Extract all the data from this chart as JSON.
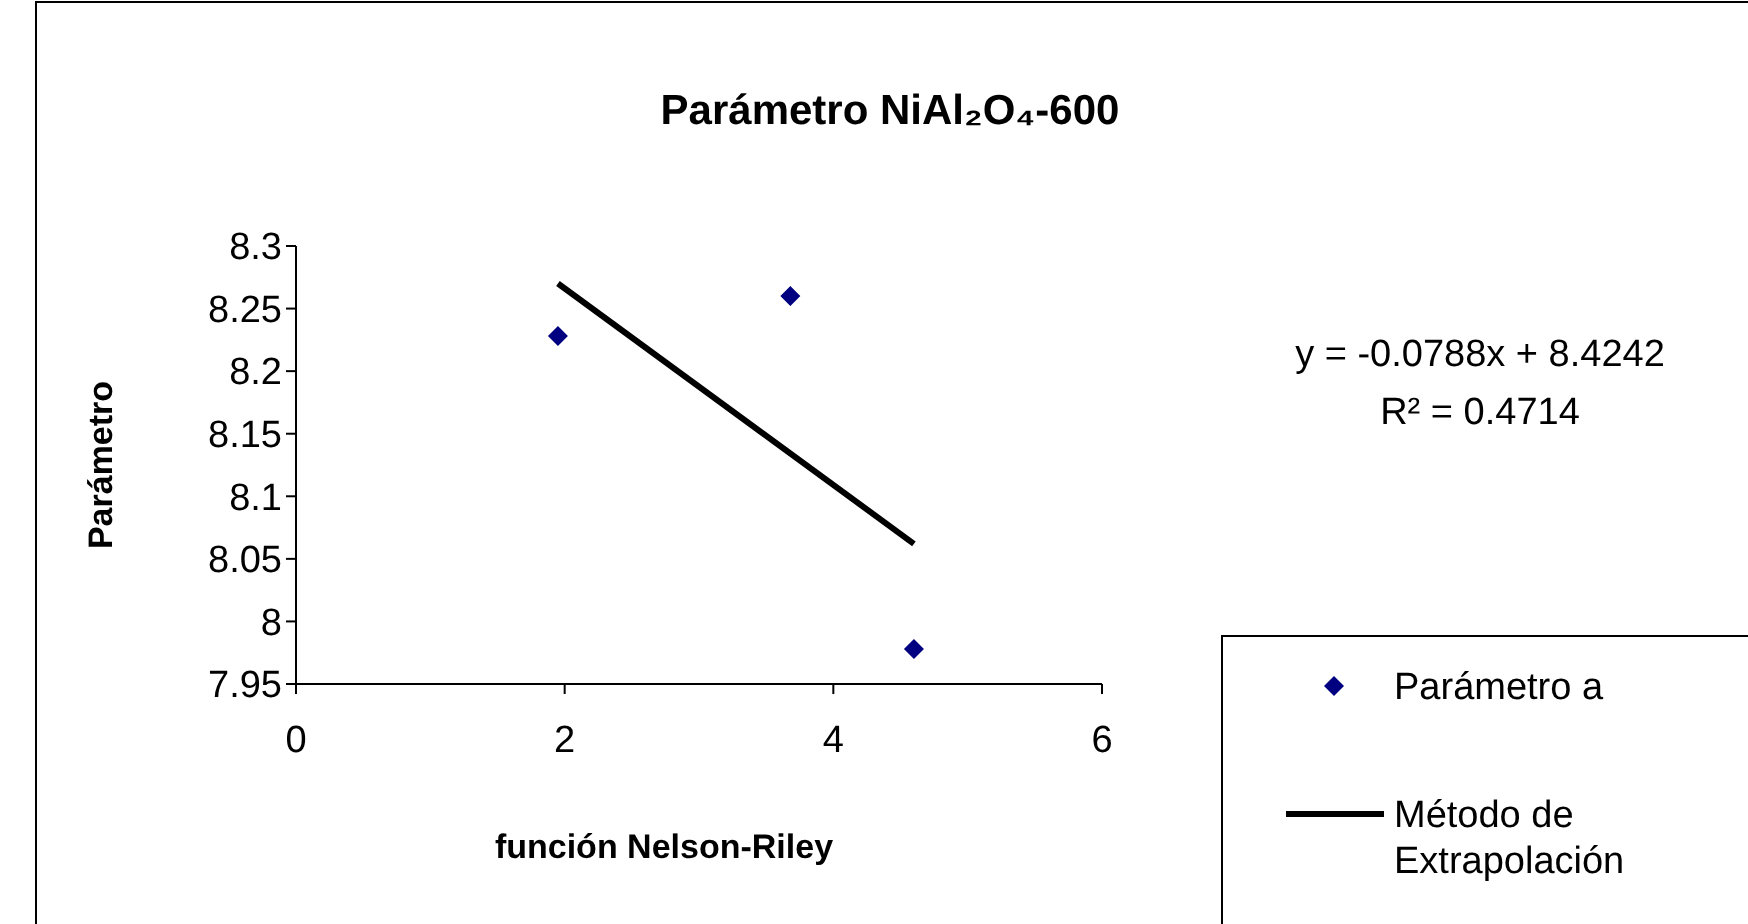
{
  "chart_data": {
    "type": "scatter",
    "title": "Parámetro NiAl₂O₄-600",
    "xlabel": "función Nelson-Riley",
    "ylabel": "Parámetro",
    "xlim": [
      0,
      6
    ],
    "xticks": [
      0,
      2,
      4,
      6
    ],
    "ylim": [
      7.95,
      8.3
    ],
    "yticks": [
      7.95,
      8,
      8.05,
      8.1,
      8.15,
      8.2,
      8.25,
      8.3
    ],
    "series": [
      {
        "name": "Parámetro a",
        "color": "#000080",
        "marker": "diamond",
        "x": [
          1.95,
          3.68,
          4.6
        ],
        "values": [
          8.228,
          8.26,
          7.978
        ]
      },
      {
        "name": "Método de Extrapolación",
        "type": "line",
        "color": "#000000",
        "line_style": "solid",
        "marker": "none",
        "x": [
          1.95,
          4.6
        ],
        "values": [
          8.27,
          8.062
        ]
      }
    ],
    "annotations": [
      "y = -0.0788x + 8.4242",
      "R² = 0.4714"
    ],
    "legend": "bottom right",
    "grid": false
  }
}
